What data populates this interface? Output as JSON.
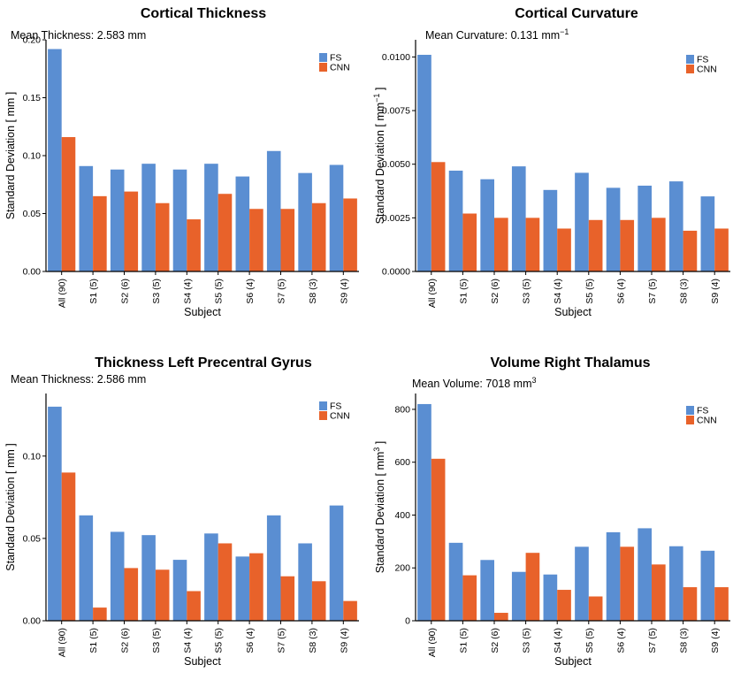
{
  "colors": {
    "fs": "#5a8ed2",
    "cnn": "#e8622a"
  },
  "chart_data": [
    {
      "type": "bar",
      "title": "Cortical Thickness",
      "subtitle_prefix": "Mean Thickness:  2.583 mm",
      "subtitle_sup": "",
      "ylabel_prefix": "Standard Deviation  [ mm",
      "ylabel_sup": "",
      "ylabel_suffix": " ]",
      "xlabel": "Subject",
      "categories": [
        "All (90)",
        "S1 (5)",
        "S2 (6)",
        "S3 (5)",
        "S4 (4)",
        "S5 (5)",
        "S6 (4)",
        "S7 (5)",
        "S8 (3)",
        "S9 (4)"
      ],
      "ylim": [
        0,
        0.2
      ],
      "yticks": [
        0,
        0.05,
        0.1,
        0.15,
        0.2
      ],
      "ytick_labels": [
        "0.00",
        "0.05",
        "0.10",
        "0.15",
        "0.20"
      ],
      "series": [
        {
          "name": "FS",
          "values": [
            0.192,
            0.091,
            0.088,
            0.093,
            0.088,
            0.093,
            0.082,
            0.104,
            0.085,
            0.092
          ]
        },
        {
          "name": "CNN",
          "values": [
            0.116,
            0.065,
            0.069,
            0.059,
            0.045,
            0.067,
            0.054,
            0.054,
            0.059,
            0.063
          ]
        }
      ]
    },
    {
      "type": "bar",
      "title": "Cortical Curvature",
      "subtitle_prefix": "Mean Curvature:  0.131 mm",
      "subtitle_sup": "−1",
      "ylabel_prefix": "Standard Deviation  [ mm",
      "ylabel_sup": "−1",
      "ylabel_suffix": " ]",
      "xlabel": "Subject",
      "categories": [
        "All (90)",
        "S1 (5)",
        "S2 (6)",
        "S3 (5)",
        "S4 (4)",
        "S5 (5)",
        "S6 (4)",
        "S7 (5)",
        "S8 (3)",
        "S9 (4)"
      ],
      "ylim": [
        0,
        0.0108
      ],
      "yticks": [
        0,
        0.0025,
        0.005,
        0.0075,
        0.01
      ],
      "ytick_labels": [
        "0.0000",
        "0.0025",
        "0.0050",
        "0.0075",
        "0.0100"
      ],
      "series": [
        {
          "name": "FS",
          "values": [
            0.0101,
            0.0047,
            0.0043,
            0.0049,
            0.0038,
            0.0046,
            0.0039,
            0.004,
            0.0042,
            0.0035
          ]
        },
        {
          "name": "CNN",
          "values": [
            0.0051,
            0.0027,
            0.0025,
            0.0025,
            0.002,
            0.0024,
            0.0024,
            0.0025,
            0.0019,
            0.002
          ]
        }
      ]
    },
    {
      "type": "bar",
      "title": "Thickness Left Precentral Gyrus",
      "subtitle_prefix": "Mean Thickness:  2.586 mm",
      "subtitle_sup": "",
      "ylabel_prefix": "Standard Deviation  [ mm",
      "ylabel_sup": "",
      "ylabel_suffix": " ]",
      "xlabel": "Subject",
      "categories": [
        "All (90)",
        "S1 (5)",
        "S2 (6)",
        "S3 (5)",
        "S4 (4)",
        "S5 (5)",
        "S6 (4)",
        "S7 (5)",
        "S8 (3)",
        "S9 (4)"
      ],
      "ylim": [
        0,
        0.138
      ],
      "yticks": [
        0,
        0.05,
        0.1
      ],
      "ytick_labels": [
        "0.00",
        "0.05",
        "0.10"
      ],
      "series": [
        {
          "name": "FS",
          "values": [
            0.13,
            0.064,
            0.054,
            0.052,
            0.037,
            0.053,
            0.039,
            0.064,
            0.047,
            0.07
          ]
        },
        {
          "name": "CNN",
          "values": [
            0.09,
            0.008,
            0.032,
            0.031,
            0.018,
            0.047,
            0.041,
            0.027,
            0.024,
            0.012
          ]
        }
      ]
    },
    {
      "type": "bar",
      "title": "Volume Right Thalamus",
      "subtitle_prefix": "Mean Volume:  7018 mm",
      "subtitle_sup": "3",
      "ylabel_prefix": "Standard Deviation  [ mm",
      "ylabel_sup": "3",
      "ylabel_suffix": " ]",
      "xlabel": "Subject",
      "categories": [
        "All (90)",
        "S1 (5)",
        "S2 (6)",
        "S3 (5)",
        "S4 (4)",
        "S5 (5)",
        "S6 (4)",
        "S7 (5)",
        "S8 (3)",
        "S9 (4)"
      ],
      "ylim": [
        0,
        860
      ],
      "yticks": [
        0,
        200,
        400,
        600,
        800
      ],
      "ytick_labels": [
        "0",
        "200",
        "400",
        "600",
        "800"
      ],
      "series": [
        {
          "name": "FS",
          "values": [
            820,
            295,
            230,
            185,
            175,
            280,
            335,
            350,
            282,
            265
          ]
        },
        {
          "name": "CNN",
          "values": [
            613,
            172,
            30,
            257,
            117,
            92,
            280,
            213,
            127,
            127
          ]
        }
      ]
    }
  ]
}
